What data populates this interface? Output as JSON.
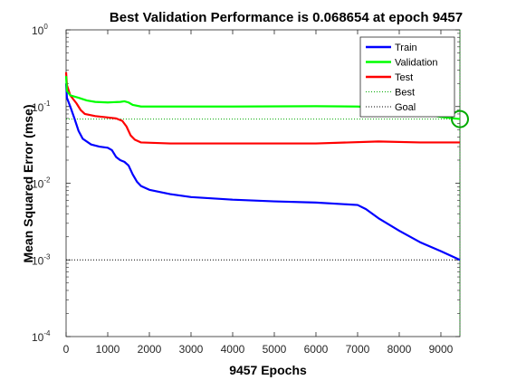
{
  "chart_data": {
    "type": "line",
    "title": "Best Validation Performance is 0.068654 at epoch 9457",
    "xlabel": "9457 Epochs",
    "ylabel": "Mean Squared Error  (mse)",
    "xlim": [
      0,
      9457
    ],
    "ylim": [
      0.0001,
      1
    ],
    "yscale": "log",
    "x_ticks": [
      0,
      1000,
      2000,
      3000,
      4000,
      5000,
      6000,
      7000,
      8000,
      9000
    ],
    "y_ticks": [
      {
        "value": 0.0001,
        "base": "10",
        "exp": "-4"
      },
      {
        "value": 0.001,
        "base": "10",
        "exp": "-3"
      },
      {
        "value": 0.01,
        "base": "10",
        "exp": "-2"
      },
      {
        "value": 0.1,
        "base": "10",
        "exp": "-1"
      },
      {
        "value": 1,
        "base": "10",
        "exp": "0"
      }
    ],
    "legend_position": "top-right",
    "series": [
      {
        "name": "Train",
        "color": "#0000ff",
        "style": "solid",
        "points": [
          [
            0,
            0.2
          ],
          [
            20,
            0.13
          ],
          [
            100,
            0.1
          ],
          [
            200,
            0.07
          ],
          [
            300,
            0.048
          ],
          [
            400,
            0.038
          ],
          [
            600,
            0.032
          ],
          [
            800,
            0.03
          ],
          [
            1000,
            0.029
          ],
          [
            1100,
            0.027
          ],
          [
            1200,
            0.022
          ],
          [
            1300,
            0.02
          ],
          [
            1400,
            0.019
          ],
          [
            1500,
            0.017
          ],
          [
            1600,
            0.013
          ],
          [
            1700,
            0.0105
          ],
          [
            1800,
            0.0092
          ],
          [
            2000,
            0.0082
          ],
          [
            2500,
            0.0072
          ],
          [
            3000,
            0.0066
          ],
          [
            4000,
            0.0061
          ],
          [
            5000,
            0.0058
          ],
          [
            6000,
            0.0056
          ],
          [
            7000,
            0.0052
          ],
          [
            7200,
            0.0046
          ],
          [
            7500,
            0.0035
          ],
          [
            8000,
            0.0024
          ],
          [
            8500,
            0.0017
          ],
          [
            9000,
            0.0013
          ],
          [
            9457,
            0.001
          ]
        ]
      },
      {
        "name": "Validation",
        "color": "#00ff00",
        "style": "solid",
        "points": [
          [
            0,
            0.25
          ],
          [
            20,
            0.16
          ],
          [
            100,
            0.14
          ],
          [
            300,
            0.13
          ],
          [
            500,
            0.12
          ],
          [
            700,
            0.115
          ],
          [
            1000,
            0.113
          ],
          [
            1300,
            0.115
          ],
          [
            1400,
            0.117
          ],
          [
            1500,
            0.113
          ],
          [
            1600,
            0.105
          ],
          [
            1800,
            0.1
          ],
          [
            2000,
            0.1
          ],
          [
            4000,
            0.1
          ],
          [
            6000,
            0.101
          ],
          [
            7000,
            0.1
          ],
          [
            8000,
            0.093
          ],
          [
            9000,
            0.073
          ],
          [
            9457,
            0.068654
          ]
        ]
      },
      {
        "name": "Test",
        "color": "#ff0000",
        "style": "solid",
        "points": [
          [
            0,
            0.28
          ],
          [
            20,
            0.19
          ],
          [
            100,
            0.14
          ],
          [
            250,
            0.11
          ],
          [
            350,
            0.09
          ],
          [
            450,
            0.08
          ],
          [
            700,
            0.075
          ],
          [
            1000,
            0.072
          ],
          [
            1200,
            0.07
          ],
          [
            1350,
            0.065
          ],
          [
            1450,
            0.055
          ],
          [
            1550,
            0.042
          ],
          [
            1650,
            0.037
          ],
          [
            1800,
            0.034
          ],
          [
            2500,
            0.033
          ],
          [
            4000,
            0.033
          ],
          [
            6000,
            0.033
          ],
          [
            7500,
            0.035
          ],
          [
            8500,
            0.034
          ],
          [
            9457,
            0.034
          ]
        ]
      }
    ],
    "reference_lines": [
      {
        "name": "Best",
        "color": "#00aa00",
        "style": "dotted",
        "orientation": "horizontal",
        "y": 0.068654
      },
      {
        "name": "Best",
        "color": "#00aa00",
        "style": "dotted",
        "orientation": "vertical",
        "x": 9457
      },
      {
        "name": "Goal",
        "color": "#000000",
        "style": "dotted",
        "orientation": "horizontal",
        "y": 0.001
      }
    ],
    "best_marker": {
      "x": 9457,
      "y": 0.068654,
      "color": "#00aa00",
      "shape": "circle"
    }
  }
}
